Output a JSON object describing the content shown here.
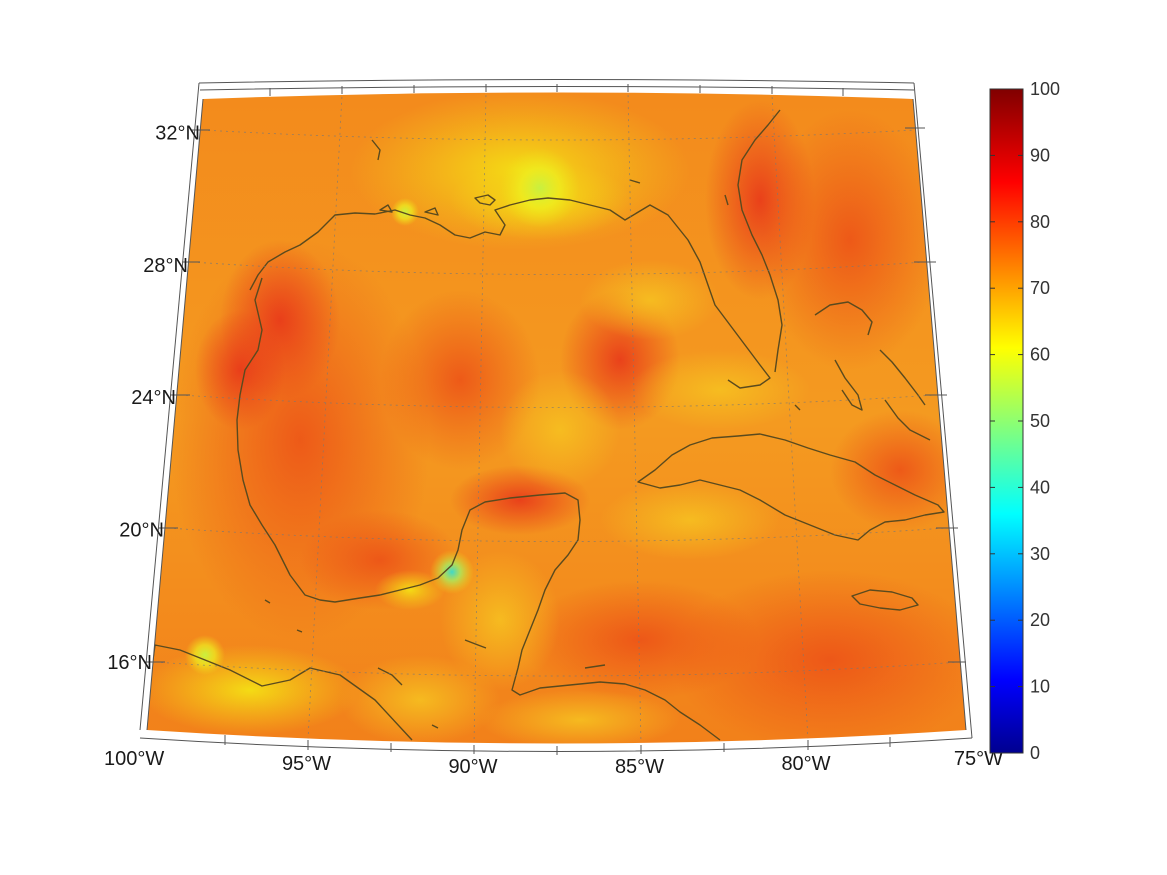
{
  "map": {
    "projection": "conic",
    "lon_range": [
      -100,
      -75
    ],
    "lat_range": [
      14,
      33
    ],
    "lon_ticks": [
      {
        "value": -100,
        "label": "100°W"
      },
      {
        "value": -95,
        "label": "95°W"
      },
      {
        "value": -90,
        "label": "90°W"
      },
      {
        "value": -85,
        "label": "85°W"
      },
      {
        "value": -80,
        "label": "80°W"
      },
      {
        "value": -75,
        "label": "75°W"
      }
    ],
    "lat_ticks": [
      {
        "value": 16,
        "label": "16°N"
      },
      {
        "value": 20,
        "label": "20°N"
      },
      {
        "value": 24,
        "label": "24°N"
      },
      {
        "value": 28,
        "label": "28°N"
      },
      {
        "value": 32,
        "label": "32°N"
      }
    ],
    "grid": true,
    "coastline_color": "#5a4a1e",
    "field_colors": {
      "ocean_base": "#f5a020",
      "warm": "#f06a15",
      "hot": "#e8401a",
      "cool": "#f0d818",
      "cyan_spot": "#40e0d0"
    }
  },
  "colorbar": {
    "min": 0,
    "max": 100,
    "colormap": "jet",
    "ticks": [
      "0",
      "10",
      "20",
      "30",
      "40",
      "50",
      "60",
      "70",
      "80",
      "90",
      "100"
    ]
  }
}
